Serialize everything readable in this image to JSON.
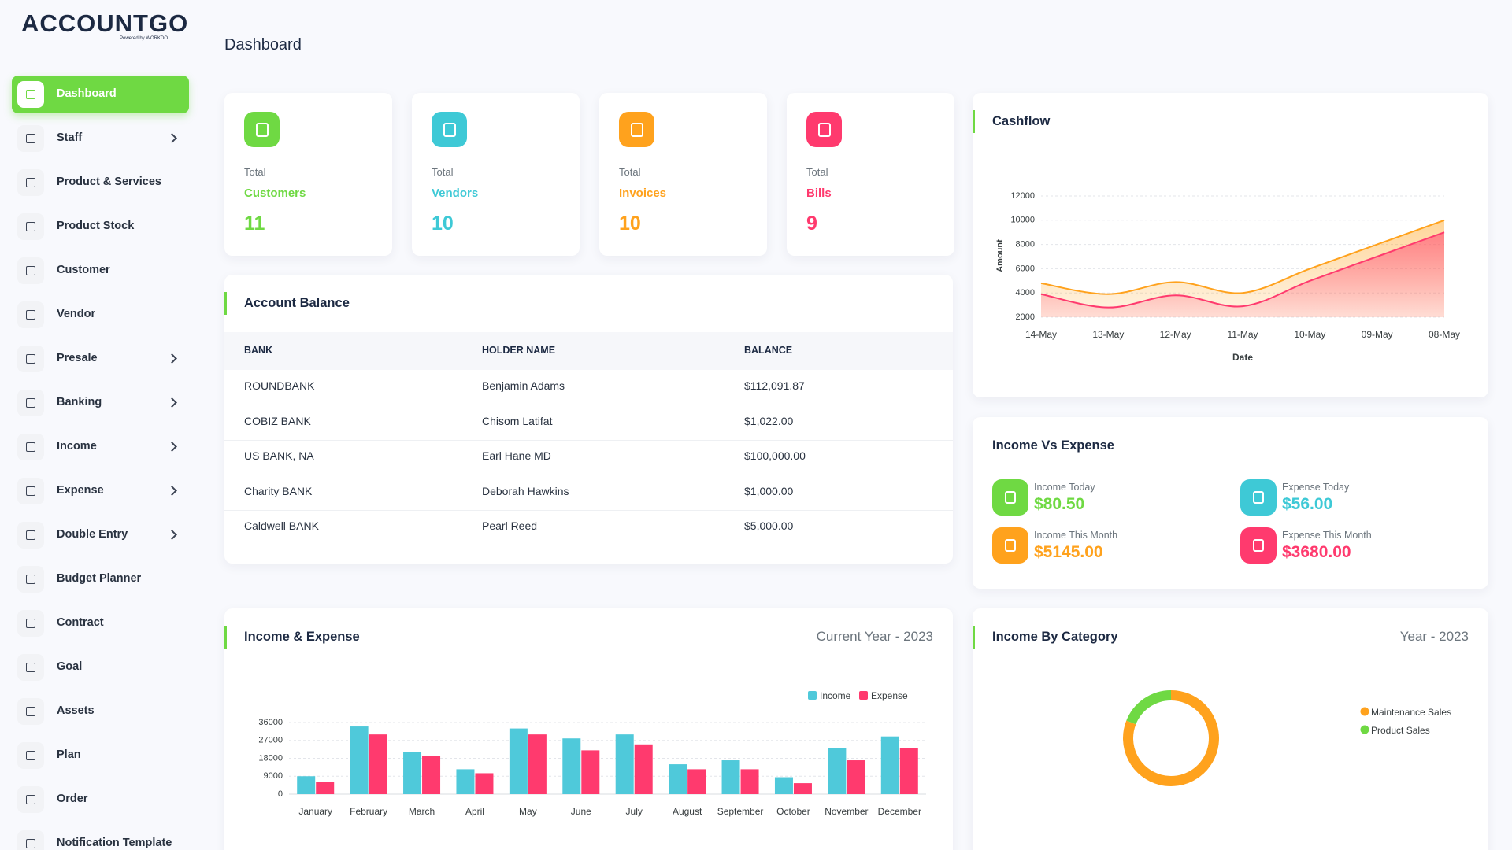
{
  "brand": {
    "logo": "ACCOUNTGO",
    "powered_by": "Powered by WORKDO"
  },
  "sidebar": {
    "items": [
      {
        "label": "Dashboard",
        "active": true,
        "submenu": false
      },
      {
        "label": "Staff",
        "active": false,
        "submenu": true
      },
      {
        "label": "Product & Services",
        "active": false,
        "submenu": false
      },
      {
        "label": "Product Stock",
        "active": false,
        "submenu": false
      },
      {
        "label": "Customer",
        "active": false,
        "submenu": false
      },
      {
        "label": "Vendor",
        "active": false,
        "submenu": false
      },
      {
        "label": "Presale",
        "active": false,
        "submenu": true
      },
      {
        "label": "Banking",
        "active": false,
        "submenu": true
      },
      {
        "label": "Income",
        "active": false,
        "submenu": true
      },
      {
        "label": "Expense",
        "active": false,
        "submenu": true
      },
      {
        "label": "Double Entry",
        "active": false,
        "submenu": true
      },
      {
        "label": "Budget Planner",
        "active": false,
        "submenu": false
      },
      {
        "label": "Contract",
        "active": false,
        "submenu": false
      },
      {
        "label": "Goal",
        "active": false,
        "submenu": false
      },
      {
        "label": "Assets",
        "active": false,
        "submenu": false
      },
      {
        "label": "Plan",
        "active": false,
        "submenu": false
      },
      {
        "label": "Order",
        "active": false,
        "submenu": false
      },
      {
        "label": "Notification Template",
        "active": false,
        "submenu": false
      }
    ]
  },
  "page_title": "Dashboard",
  "stats": [
    {
      "caption": "Total",
      "label": "Customers",
      "value": 11,
      "color": "#6fd943"
    },
    {
      "caption": "Total",
      "label": "Vendors",
      "value": 10,
      "color": "#3ec9d6"
    },
    {
      "caption": "Total",
      "label": "Invoices",
      "value": 10,
      "color": "#ffa21d"
    },
    {
      "caption": "Total",
      "label": "Bills",
      "value": 9,
      "color": "#ff3a6e"
    }
  ],
  "account_balance": {
    "title": "Account Balance",
    "columns": [
      "BANK",
      "HOLDER NAME",
      "BALANCE"
    ],
    "rows": [
      [
        "ROUNDBANK",
        "Benjamin Adams",
        "$112,091.87"
      ],
      [
        "COBIZ BANK",
        "Chisom Latifat",
        "$1,022.00"
      ],
      [
        "US BANK, NA",
        "Earl Hane MD",
        "$100,000.00"
      ],
      [
        "Charity BANK",
        "Deborah Hawkins",
        "$1,000.00"
      ],
      [
        "Caldwell BANK",
        "Pearl Reed",
        "$5,000.00"
      ]
    ]
  },
  "income_vs_expense": {
    "title": "Income Vs Expense",
    "items": [
      {
        "label": "Income Today",
        "value": "$80.50",
        "color": "#6fd943"
      },
      {
        "label": "Expense Today",
        "value": "$56.00",
        "color": "#3ec9d6"
      },
      {
        "label": "Income This Month",
        "value": "$5145.00",
        "color": "#ffa21d"
      },
      {
        "label": "Expense This Month",
        "value": "$3680.00",
        "color": "#ff3a6e"
      }
    ]
  },
  "chart_data": [
    {
      "type": "area",
      "title": "Cashflow",
      "x": [
        "14-May",
        "13-May",
        "12-May",
        "11-May",
        "10-May",
        "09-May",
        "08-May"
      ],
      "series": [
        {
          "color": "#ffa21d",
          "values": [
            4800,
            3900,
            4900,
            4000,
            6000,
            8000,
            10000
          ]
        },
        {
          "color": "#ff3a6e",
          "values": [
            3900,
            2800,
            3800,
            2900,
            5000,
            7000,
            9000
          ]
        }
      ],
      "ylim": [
        2000,
        12000
      ],
      "yticks": [
        2000,
        4000,
        6000,
        8000,
        10000,
        12000
      ],
      "xlabel": "Date",
      "ylabel": "Amount",
      "grid": true
    },
    {
      "type": "bar",
      "title": "Income & Expense",
      "subtitle": "Current Year - 2023",
      "categories": [
        "January",
        "February",
        "March",
        "April",
        "May",
        "June",
        "July",
        "August",
        "September",
        "October",
        "November",
        "December"
      ],
      "series": [
        {
          "name": "Income",
          "color": "#4fc9da",
          "values": [
            9000,
            34000,
            21000,
            12500,
            33000,
            28000,
            30000,
            15000,
            17000,
            8500,
            23000,
            29000
          ]
        },
        {
          "name": "Expense",
          "color": "#ff3a6e",
          "values": [
            6000,
            30000,
            19000,
            10500,
            30000,
            22000,
            25000,
            12500,
            12500,
            5500,
            17000,
            23000
          ]
        }
      ],
      "ylim": [
        0,
        36000
      ],
      "yticks": [
        0,
        9000,
        18000,
        27000,
        36000
      ],
      "grid": true,
      "legend": "top-right"
    },
    {
      "type": "donut",
      "title": "Income By Category",
      "subtitle": "Year - 2023",
      "categories": [
        "Maintenance Sales",
        "Product Sales"
      ],
      "values": [
        81,
        19
      ],
      "colors": [
        "#ffa21d",
        "#6fd943"
      ],
      "legend": "right"
    }
  ]
}
